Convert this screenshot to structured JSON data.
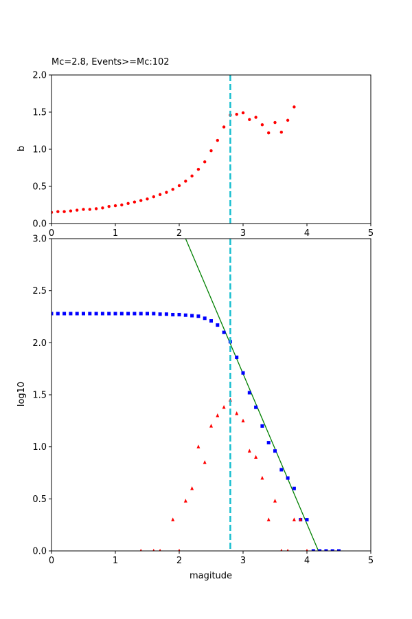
{
  "colors": {
    "b_points": "#ff0000",
    "cumulative": "#0000ff",
    "noncumulative": "#ff0000",
    "fit_line": "#008000",
    "mc_line": "#17becf"
  },
  "chart_data": [
    {
      "type": "scatter",
      "title": "Mc=2.8, Events>=Mc:102",
      "xlabel": "",
      "ylabel": "b",
      "xlim": [
        0,
        5
      ],
      "ylim": [
        0,
        2
      ],
      "xticks": [
        "0",
        "1",
        "2",
        "3",
        "4",
        "5"
      ],
      "yticks": [
        "0.0",
        "0.5",
        "1.0",
        "1.5",
        "2.0"
      ],
      "mc": 2.8,
      "series": [
        {
          "marker": "circle",
          "x": [
            0.0,
            0.1,
            0.2,
            0.3,
            0.4,
            0.5,
            0.6,
            0.7,
            0.8,
            0.9,
            1.0,
            1.1,
            1.2,
            1.3,
            1.4,
            1.5,
            1.6,
            1.7,
            1.8,
            1.9,
            2.0,
            2.1,
            2.2,
            2.3,
            2.4,
            2.5,
            2.6,
            2.7,
            2.8,
            2.9,
            3.0,
            3.1,
            3.2,
            3.3,
            3.4,
            3.5,
            3.6,
            3.7,
            3.8
          ],
          "y": [
            0.15,
            0.16,
            0.16,
            0.17,
            0.18,
            0.19,
            0.19,
            0.2,
            0.21,
            0.23,
            0.24,
            0.25,
            0.27,
            0.29,
            0.31,
            0.33,
            0.36,
            0.39,
            0.42,
            0.46,
            0.51,
            0.57,
            0.64,
            0.73,
            0.83,
            0.98,
            1.12,
            1.3,
            1.46,
            1.47,
            1.49,
            1.4,
            1.43,
            1.33,
            1.22,
            1.36,
            1.23,
            1.39,
            1.57
          ]
        }
      ]
    },
    {
      "type": "scatter",
      "title": "",
      "xlabel": "magitude",
      "ylabel": "log10",
      "xlim": [
        0,
        5
      ],
      "ylim": [
        0,
        3
      ],
      "xticks": [
        "0",
        "1",
        "2",
        "3",
        "4",
        "5"
      ],
      "yticks": [
        "0.0",
        "0.5",
        "1.0",
        "1.5",
        "2.0",
        "2.5",
        "3.0"
      ],
      "mc": 2.8,
      "fit_line": {
        "x": [
          2.1,
          4.18
        ],
        "y": [
          3.0,
          0.0
        ]
      },
      "series": [
        {
          "marker": "square",
          "x": [
            0.0,
            0.1,
            0.2,
            0.3,
            0.4,
            0.5,
            0.6,
            0.7,
            0.8,
            0.9,
            1.0,
            1.1,
            1.2,
            1.3,
            1.4,
            1.5,
            1.6,
            1.7,
            1.8,
            1.9,
            2.0,
            2.1,
            2.2,
            2.3,
            2.4,
            2.5,
            2.6,
            2.7,
            2.8,
            2.9,
            3.0,
            3.1,
            3.2,
            3.3,
            3.4,
            3.5,
            3.6,
            3.7,
            3.8,
            3.9,
            4.0,
            4.1,
            4.2,
            4.3,
            4.4,
            4.5
          ],
          "y": [
            2.28,
            2.28,
            2.28,
            2.28,
            2.28,
            2.28,
            2.28,
            2.28,
            2.28,
            2.28,
            2.28,
            2.28,
            2.28,
            2.28,
            2.28,
            2.28,
            2.28,
            2.275,
            2.275,
            2.27,
            2.27,
            2.265,
            2.26,
            2.255,
            2.235,
            2.21,
            2.17,
            2.1,
            2.01,
            1.86,
            1.71,
            1.52,
            1.38,
            1.2,
            1.04,
            0.96,
            0.78,
            0.7,
            0.6,
            0.3,
            0.3,
            0.0,
            0.0,
            0.0,
            0.0,
            0.0
          ]
        },
        {
          "marker": "triangle",
          "x": [
            1.4,
            1.6,
            1.7,
            1.9,
            2.0,
            2.1,
            2.2,
            2.3,
            2.4,
            2.5,
            2.6,
            2.7,
            2.8,
            2.9,
            3.0,
            3.1,
            3.2,
            3.3,
            3.4,
            3.5,
            3.6,
            3.7,
            3.8,
            3.9,
            4.0
          ],
          "y": [
            0.0,
            0.0,
            0.0,
            0.3,
            0.0,
            0.48,
            0.6,
            1.0,
            0.85,
            1.2,
            1.3,
            1.38,
            1.45,
            1.32,
            1.25,
            0.96,
            0.9,
            0.7,
            0.3,
            0.48,
            0.0,
            0.0,
            0.3,
            0.3,
            0.0
          ]
        }
      ]
    }
  ]
}
